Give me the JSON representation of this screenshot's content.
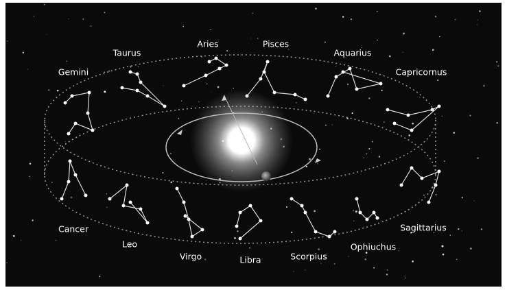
{
  "constellations": [
    "Taurus",
    "Aries",
    "Pisces",
    "Aquarius",
    "Gemini",
    "Capricornus",
    "Cancer",
    "Leo",
    "Virgo",
    "Libra",
    "Scorpius",
    "Ophiuchus",
    "Sagittarius"
  ]
}
